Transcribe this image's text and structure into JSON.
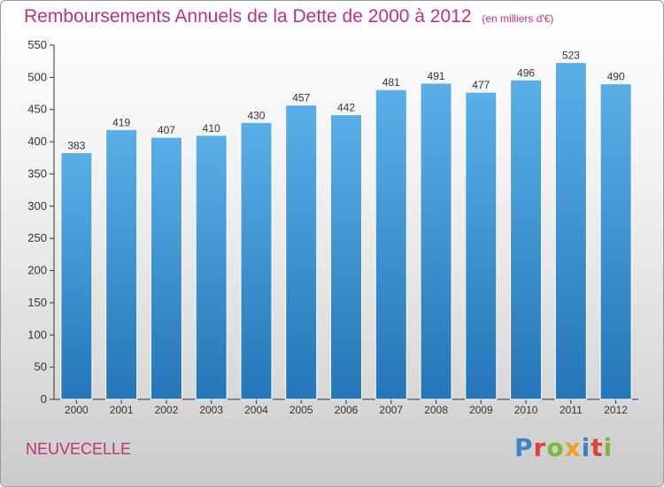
{
  "title": "Remboursements Annuels de la Dette de 2000 à 2012",
  "unit": "(en milliers d'€)",
  "town": "NEUVECELLE",
  "brand": {
    "text": "Proxiti",
    "letters": [
      "P",
      "r",
      "o",
      "x",
      "i",
      "t",
      "i"
    ],
    "colors": [
      "#3a84c8",
      "#e2403a",
      "#7cb83a",
      "#f0a020",
      "#3a84c8",
      "#e2403a",
      "#7cb83a"
    ]
  },
  "colors": {
    "title": "#c0317b",
    "bar_top": "#5aafe8",
    "bar_bottom": "#2476b8",
    "axis": "#333333"
  },
  "chart_data": {
    "type": "bar",
    "categories": [
      "2000",
      "2001",
      "2002",
      "2003",
      "2004",
      "2005",
      "2006",
      "2007",
      "2008",
      "2009",
      "2010",
      "2011",
      "2012"
    ],
    "values": [
      383,
      419,
      407,
      410,
      430,
      457,
      442,
      481,
      491,
      477,
      496,
      523,
      490
    ],
    "ylim": [
      0,
      550
    ],
    "yticks": [
      0,
      50,
      100,
      150,
      200,
      250,
      300,
      350,
      400,
      450,
      500,
      550
    ],
    "grid": false,
    "legend": "none",
    "data_labels": true
  }
}
